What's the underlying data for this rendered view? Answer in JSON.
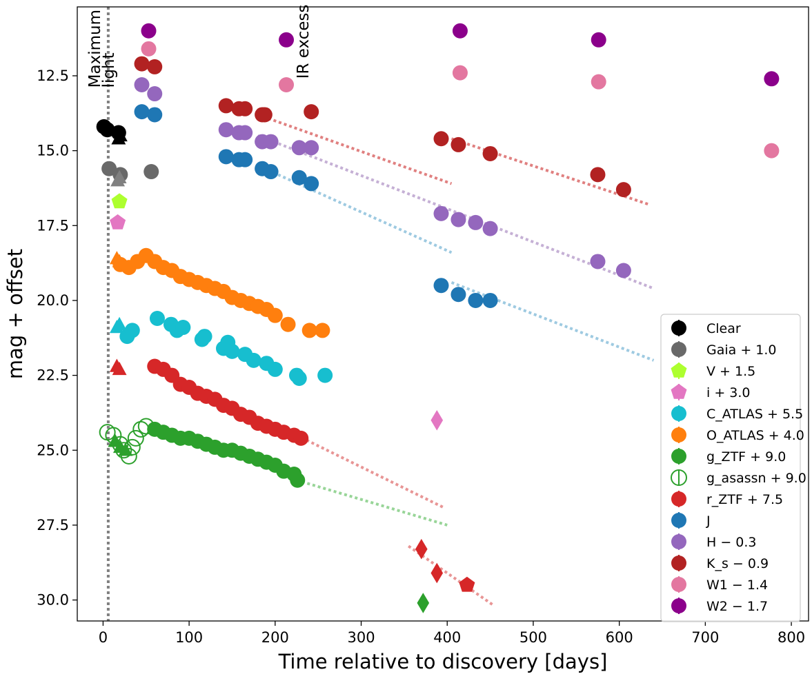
{
  "chart_data": {
    "type": "scatter",
    "title": "",
    "xlabel": "Time relative to discovery [days]",
    "ylabel": "mag + offset",
    "xlim": [
      -30,
      820
    ],
    "ylim": [
      30.7,
      10.2
    ],
    "y_inverted": true,
    "xticks": [
      0,
      100,
      200,
      300,
      400,
      500,
      600,
      700,
      800
    ],
    "yticks": [
      12.5,
      15.0,
      17.5,
      20.0,
      22.5,
      25.0,
      27.5,
      30.0
    ],
    "xtick_labels": [
      "0",
      "100",
      "200",
      "300",
      "400",
      "500",
      "600",
      "700",
      "800"
    ],
    "ytick_labels": [
      "12.5",
      "15.0",
      "17.5",
      "20.0",
      "22.5",
      "25.0",
      "27.5",
      "30.0"
    ],
    "grid": false,
    "legend_position": "lower-right",
    "annotations": [
      {
        "text": "Maximum",
        "x": 3,
        "y": 12.9,
        "rotation": -90
      },
      {
        "text": "light",
        "x": 19,
        "y": 12.9,
        "rotation": -90
      },
      {
        "text": "IR excess",
        "x": 245,
        "y": 12.6,
        "rotation": -90
      }
    ],
    "vline": {
      "x": 6,
      "color": "#808080",
      "style": "dotted",
      "label": "maximum light"
    },
    "series": [
      {
        "name": "Clear",
        "label": "Clear",
        "color": "#000000",
        "marker": "circle",
        "points": [
          [
            1,
            14.2
          ],
          [
            5,
            14.3
          ],
          [
            18,
            14.4
          ]
        ]
      },
      {
        "name": "Clear triangles",
        "label": "",
        "color": "#000000",
        "marker": "triangle",
        "points": [
          [
            18,
            14.6
          ],
          [
            20,
            14.5
          ]
        ]
      },
      {
        "name": "Gaia + 1.0",
        "label": "Gaia + 1.0",
        "color": "#696969",
        "marker": "circle",
        "points": [
          [
            7,
            15.6
          ],
          [
            56,
            15.7
          ],
          [
            20,
            15.8
          ]
        ]
      },
      {
        "name": "Gaia triangles",
        "label": "",
        "color": "#808080",
        "marker": "triangle",
        "points": [
          [
            17,
            16.0
          ],
          [
            19,
            15.9
          ]
        ]
      },
      {
        "name": "V + 1.5",
        "label": "V + 1.5",
        "color": "#adff2f",
        "marker": "pentagon",
        "points": [
          [
            19,
            16.7
          ]
        ]
      },
      {
        "name": "i + 3.0",
        "label": "i + 3.0",
        "color": "#e377c2",
        "marker": "pentagon",
        "points": [
          [
            17,
            17.4
          ]
        ]
      },
      {
        "name": "i diamond",
        "label": "",
        "color": "#e377c2",
        "marker": "diamond",
        "points": [
          [
            388,
            24.0
          ]
        ]
      },
      {
        "name": "C_ATLAS + 5.5",
        "label": "C_ATLAS + 5.5",
        "color": "#17becf",
        "marker": "circle",
        "points": [
          [
            28,
            21.2
          ],
          [
            34,
            21.0
          ],
          [
            63,
            20.6
          ],
          [
            79,
            20.8
          ],
          [
            86,
            21.0
          ],
          [
            93,
            20.9
          ],
          [
            115,
            21.3
          ],
          [
            118,
            21.2
          ],
          [
            140,
            21.6
          ],
          [
            145,
            21.4
          ],
          [
            150,
            21.7
          ],
          [
            165,
            21.8
          ],
          [
            175,
            22.0
          ],
          [
            190,
            22.1
          ],
          [
            200,
            22.3
          ],
          [
            225,
            22.5
          ],
          [
            228,
            22.6
          ],
          [
            258,
            22.5
          ]
        ]
      },
      {
        "name": "C triangles",
        "label": "",
        "color": "#17becf",
        "marker": "triangle",
        "points": [
          [
            16,
            20.9
          ],
          [
            19,
            20.8
          ]
        ]
      },
      {
        "name": "O_ATLAS + 4.0",
        "label": "O_ATLAS + 4.0",
        "color": "#ff7f0e",
        "marker": "circle",
        "points": [
          [
            20,
            18.8
          ],
          [
            30,
            18.9
          ],
          [
            40,
            18.7
          ],
          [
            50,
            18.5
          ],
          [
            60,
            18.7
          ],
          [
            70,
            18.9
          ],
          [
            80,
            19.0
          ],
          [
            90,
            19.2
          ],
          [
            100,
            19.3
          ],
          [
            110,
            19.4
          ],
          [
            120,
            19.5
          ],
          [
            130,
            19.6
          ],
          [
            140,
            19.7
          ],
          [
            150,
            19.9
          ],
          [
            160,
            20.0
          ],
          [
            170,
            20.1
          ],
          [
            180,
            20.2
          ],
          [
            190,
            20.3
          ],
          [
            200,
            20.5
          ],
          [
            215,
            20.8
          ],
          [
            240,
            21.0
          ],
          [
            255,
            21.0
          ]
        ]
      },
      {
        "name": "O triangles",
        "label": "",
        "color": "#ff7f0e",
        "marker": "triangle",
        "points": [
          [
            16,
            18.6
          ],
          [
            19,
            18.7
          ]
        ]
      },
      {
        "name": "g_ZTF + 9.0",
        "label": "g_ZTF + 9.0",
        "color": "#2ca02c",
        "marker": "circle",
        "points": [
          [
            60,
            24.3
          ],
          [
            70,
            24.4
          ],
          [
            80,
            24.5
          ],
          [
            90,
            24.6
          ],
          [
            100,
            24.6
          ],
          [
            110,
            24.7
          ],
          [
            120,
            24.8
          ],
          [
            130,
            24.9
          ],
          [
            140,
            25.0
          ],
          [
            150,
            25.0
          ],
          [
            160,
            25.1
          ],
          [
            170,
            25.2
          ],
          [
            180,
            25.3
          ],
          [
            190,
            25.4
          ],
          [
            200,
            25.5
          ],
          [
            210,
            25.7
          ],
          [
            222,
            25.8
          ],
          [
            226,
            26.0
          ]
        ]
      },
      {
        "name": "g diamond",
        "label": "",
        "color": "#2ca02c",
        "marker": "diamond",
        "points": [
          [
            372,
            30.1
          ]
        ]
      },
      {
        "name": "g triangles",
        "label": "",
        "color": "#2ca02c",
        "marker": "triangle",
        "points": [
          [
            14,
            24.7
          ],
          [
            20,
            24.9
          ],
          [
            26,
            25.0
          ]
        ]
      },
      {
        "name": "g_asassn + 9.0",
        "label": "g_asassn + 9.0",
        "color": "#2ca02c",
        "marker": "open-circle",
        "points": [
          [
            5,
            24.4
          ],
          [
            12,
            24.5
          ],
          [
            20,
            24.8
          ],
          [
            24,
            25.0
          ],
          [
            30,
            25.2
          ],
          [
            34,
            24.9
          ],
          [
            38,
            24.6
          ],
          [
            44,
            24.3
          ],
          [
            50,
            24.2
          ]
        ]
      },
      {
        "name": "r_ZTF + 7.5",
        "label": "r_ZTF + 7.5",
        "color": "#d62728",
        "marker": "circle",
        "points": [
          [
            60,
            22.2
          ],
          [
            70,
            22.3
          ],
          [
            80,
            22.5
          ],
          [
            90,
            22.8
          ],
          [
            100,
            22.9
          ],
          [
            110,
            23.1
          ],
          [
            120,
            23.2
          ],
          [
            130,
            23.3
          ],
          [
            140,
            23.5
          ],
          [
            150,
            23.6
          ],
          [
            160,
            23.8
          ],
          [
            170,
            23.9
          ],
          [
            180,
            24.1
          ],
          [
            190,
            24.2
          ],
          [
            200,
            24.3
          ],
          [
            210,
            24.4
          ],
          [
            222,
            24.5
          ],
          [
            230,
            24.6
          ]
        ]
      },
      {
        "name": "r diamonds",
        "label": "",
        "color": "#d62728",
        "marker": "diamond",
        "points": [
          [
            370,
            28.3
          ],
          [
            388,
            29.1
          ]
        ]
      },
      {
        "name": "r pentagon",
        "label": "",
        "color": "#d62728",
        "marker": "pentagon",
        "points": [
          [
            423,
            29.5
          ]
        ]
      },
      {
        "name": "r triangles",
        "label": "",
        "color": "#d62728",
        "marker": "triangle",
        "points": [
          [
            16,
            22.2
          ],
          [
            19,
            22.3
          ]
        ]
      },
      {
        "name": "J",
        "label": "J",
        "color": "#1f77b4",
        "marker": "circle",
        "points": [
          [
            45,
            13.7
          ],
          [
            60,
            13.8
          ],
          [
            143,
            15.2
          ],
          [
            158,
            15.3
          ],
          [
            165,
            15.3
          ],
          [
            185,
            15.6
          ],
          [
            195,
            15.7
          ],
          [
            228,
            15.9
          ],
          [
            242,
            16.1
          ],
          [
            393,
            19.5
          ],
          [
            413,
            19.8
          ],
          [
            433,
            20.0
          ],
          [
            450,
            20.0
          ]
        ]
      },
      {
        "name": "H - 0.3",
        "label": "H − 0.3",
        "color": "#9467bd",
        "marker": "circle",
        "points": [
          [
            45,
            12.8
          ],
          [
            60,
            13.1
          ],
          [
            143,
            14.3
          ],
          [
            158,
            14.4
          ],
          [
            165,
            14.4
          ],
          [
            185,
            14.7
          ],
          [
            195,
            14.7
          ],
          [
            228,
            14.9
          ],
          [
            242,
            14.9
          ],
          [
            393,
            17.1
          ],
          [
            413,
            17.3
          ],
          [
            433,
            17.4
          ],
          [
            450,
            17.6
          ],
          [
            575,
            18.7
          ],
          [
            605,
            19.0
          ]
        ]
      },
      {
        "name": "K_s - 0.9",
        "label": "K_s − 0.9",
        "color": "#b22222",
        "marker": "circle",
        "points": [
          [
            45,
            12.1
          ],
          [
            60,
            12.2
          ],
          [
            143,
            13.5
          ],
          [
            158,
            13.6
          ],
          [
            165,
            13.6
          ],
          [
            185,
            13.8
          ],
          [
            188,
            13.8
          ],
          [
            242,
            13.7
          ],
          [
            393,
            14.6
          ],
          [
            413,
            14.8
          ],
          [
            450,
            15.1
          ],
          [
            575,
            15.8
          ],
          [
            605,
            16.3
          ]
        ]
      },
      {
        "name": "W1 - 1.4",
        "label": "W1 − 1.4",
        "color": "#e377a0",
        "marker": "circle",
        "points": [
          [
            53,
            11.6
          ],
          [
            213,
            12.8
          ],
          [
            415,
            12.4
          ],
          [
            576,
            12.7
          ],
          [
            777,
            15.0
          ]
        ]
      },
      {
        "name": "W2 - 1.7",
        "label": "W2 − 1.7",
        "color": "#8b008b",
        "marker": "circle",
        "points": [
          [
            53,
            11.0
          ],
          [
            213,
            11.3
          ],
          [
            415,
            11.0
          ],
          [
            576,
            11.3
          ],
          [
            777,
            12.6
          ]
        ]
      }
    ],
    "fit_lines": [
      {
        "name": "Ks fit",
        "color": "#e08080",
        "x": [
          180,
          405
        ],
        "y": [
          13.8,
          16.1
        ]
      },
      {
        "name": "Ks fit late",
        "color": "#e08080",
        "x": [
          405,
          635
        ],
        "y": [
          14.6,
          16.8
        ]
      },
      {
        "name": "H fit",
        "color": "#c5b0d5",
        "x": [
          180,
          640
        ],
        "y": [
          14.5,
          19.6
        ]
      },
      {
        "name": "J fit",
        "color": "#9ecae1",
        "x": [
          180,
          405
        ],
        "y": [
          15.5,
          18.4
        ]
      },
      {
        "name": "J fit late",
        "color": "#9ecae1",
        "x": [
          405,
          640
        ],
        "y": [
          19.4,
          22.0
        ]
      },
      {
        "name": "r fit",
        "color": "#e89595",
        "x": [
          225,
          395
        ],
        "y": [
          24.5,
          26.9
        ]
      },
      {
        "name": "g fit",
        "color": "#98d598",
        "x": [
          225,
          400
        ],
        "y": [
          26.0,
          27.5
        ]
      },
      {
        "name": "r late fit",
        "color": "#e89595",
        "x": [
          355,
          455
        ],
        "y": [
          28.2,
          30.2
        ]
      }
    ]
  },
  "legend": {
    "entries": [
      {
        "label": "Clear",
        "color": "#000000",
        "marker": "circle"
      },
      {
        "label": "Gaia + 1.0",
        "color": "#696969",
        "marker": "circle"
      },
      {
        "label": "V + 1.5",
        "color": "#adff2f",
        "marker": "pentagon"
      },
      {
        "label": "i + 3.0",
        "color": "#e377c2",
        "marker": "pentagon"
      },
      {
        "label": "C_ATLAS + 5.5",
        "color": "#17becf",
        "marker": "circle"
      },
      {
        "label": "O_ATLAS + 4.0",
        "color": "#ff7f0e",
        "marker": "circle"
      },
      {
        "label": "g_ZTF + 9.0",
        "color": "#2ca02c",
        "marker": "circle"
      },
      {
        "label": "g_asassn + 9.0",
        "color": "#2ca02c",
        "marker": "open-circle"
      },
      {
        "label": "r_ZTF + 7.5",
        "color": "#d62728",
        "marker": "circle"
      },
      {
        "label": "J",
        "color": "#1f77b4",
        "marker": "circle"
      },
      {
        "label": "H − 0.3",
        "color": "#9467bd",
        "marker": "circle"
      },
      {
        "label": "K_s − 0.9",
        "color": "#b22222",
        "marker": "circle"
      },
      {
        "label": "W1 − 1.4",
        "color": "#e377a0",
        "marker": "circle"
      },
      {
        "label": "W2 − 1.7",
        "color": "#8b008b",
        "marker": "circle"
      }
    ]
  }
}
